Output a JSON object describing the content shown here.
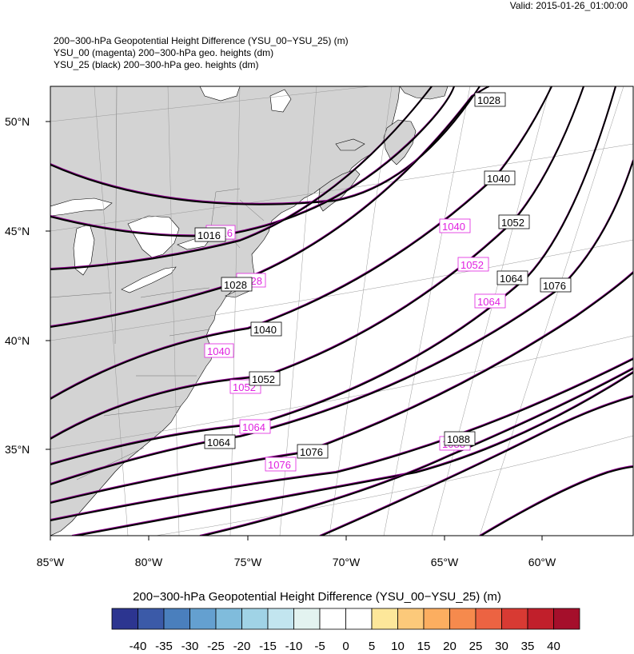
{
  "valid_label": "Valid: 2015-01-26_01:00:00",
  "titles": [
    "200−300-hPa Geopotential Height Difference (YSU_00−YSU_25)   (m)",
    "YSU_00 (magenta) 200−300-hPa geo. heights   (dm)",
    "YSU_25 (black) 200−300-hPa geo. heights   (dm)"
  ],
  "lat_labels": [
    "50°N",
    "45°N",
    "40°N",
    "35°N"
  ],
  "lon_labels": [
    "85°W",
    "80°W",
    "75°W",
    "70°W",
    "65°W",
    "60°W"
  ],
  "black_contour_labels": [
    "1016",
    "1028",
    "1040",
    "1052",
    "1064",
    "1076",
    "1088",
    "1028",
    "1040",
    "1052",
    "1064",
    "1076"
  ],
  "magenta_contour_labels": [
    "1016",
    "1028",
    "1040",
    "1052",
    "1064",
    "1076",
    "1088",
    "1040",
    "1052",
    "1064"
  ],
  "colorbar": {
    "title": "200−300-hPa Geopotential Height Difference (YSU_00−YSU_25)  (m)",
    "labels": [
      "-40",
      "-35",
      "-30",
      "-25",
      "-20",
      "-15",
      "-10",
      "-5",
      "0",
      "5",
      "10",
      "15",
      "20",
      "25",
      "30",
      "35",
      "40"
    ],
    "colors": [
      "#2c3590",
      "#3b5aa8",
      "#4a7fbd",
      "#64a0d0",
      "#80bcdc",
      "#a0d3e6",
      "#c2e5ef",
      "#e3f3f0",
      "#ffffff",
      "#ffffff",
      "#fde79a",
      "#fcc97a",
      "#fcae60",
      "#f68a4d",
      "#ec6342",
      "#d83a33",
      "#c11f2b",
      "#a50f2b"
    ]
  },
  "colors": {
    "land": "#d3d3d3",
    "ocean": "#ffffff",
    "contour_black": "#000000",
    "contour_magenta": "#8b008b",
    "label_magenta": "#e020e0"
  }
}
